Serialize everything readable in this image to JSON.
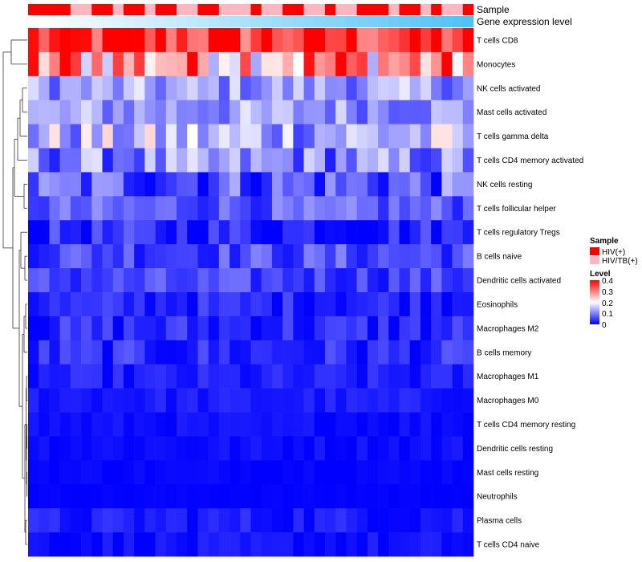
{
  "chart_data": {
    "type": "heatmap",
    "annotation_labels": {
      "sample": "Sample",
      "gene": "Gene expression level"
    },
    "rows": [
      "T cells CD8",
      "Monocytes",
      "NK cells activated",
      "Mast cells activated",
      "T cells gamma delta",
      "T cells CD4 memory activated",
      "NK cells resting",
      "T cells follicular helper",
      "T cells regulatory  Tregs",
      "B cells naive",
      "Dendritic cells activated",
      "Eosinophils",
      "Macrophages M2",
      "B cells memory",
      "Macrophages M1",
      "Macrophages M0",
      "T cells CD4 memory resting",
      "Dendritic cells resting",
      "Mast cells resting",
      "Neutrophils",
      "Plasma cells",
      "T cells CD4 naive"
    ],
    "n_columns": 42,
    "sample_groups": [
      0,
      0,
      0,
      0,
      1,
      1,
      0,
      0,
      1,
      0,
      0,
      1,
      0,
      0,
      1,
      1,
      0,
      0,
      1,
      1,
      1,
      0,
      1,
      1,
      0,
      0,
      1,
      1,
      0,
      1,
      1,
      0,
      0,
      0,
      1,
      0,
      0,
      1,
      0,
      1,
      1,
      0
    ],
    "row_means": [
      0.36,
      0.29,
      0.12,
      0.12,
      0.14,
      0.1,
      0.07,
      0.07,
      0.03,
      0.06,
      0.05,
      0.03,
      0.03,
      0.03,
      0.02,
      0.02,
      0.01,
      0.01,
      0.005,
      0.002,
      0.02,
      0.01
    ],
    "row_spread": [
      0.06,
      0.1,
      0.04,
      0.04,
      0.06,
      0.05,
      0.05,
      0.03,
      0.03,
      0.03,
      0.025,
      0.02,
      0.025,
      0.025,
      0.015,
      0.01,
      0.008,
      0.008,
      0.004,
      0.002,
      0.015,
      0.012
    ],
    "color_scale": {
      "low": "#0000ff",
      "mid": "#ffffff",
      "high": "#ff0000",
      "min": 0,
      "max": 0.4
    },
    "legend": {
      "sample_title": "Sample",
      "sample_entries": [
        {
          "label": "HIV(+)",
          "color": "#ff0000"
        },
        {
          "label": "HIV/TB(+)",
          "color": "#ffb6c1"
        }
      ],
      "level_title": "Level",
      "level_ticks": [
        "0.4",
        "0.3",
        "0.2",
        "0.1",
        "0"
      ]
    },
    "gene_bar_colors": {
      "start": "#ffffff",
      "end": "#4fc3f7"
    }
  }
}
